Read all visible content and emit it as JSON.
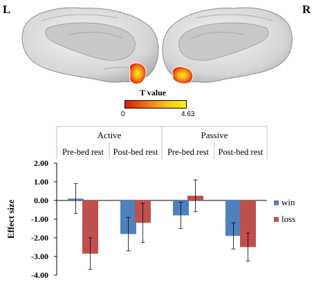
{
  "figure": {
    "hemisphere_left": "L",
    "hemisphere_right": "R",
    "colorbar": {
      "title": "T value",
      "min_label": "0",
      "max_label": "4.63",
      "colors": [
        "#e01a0e",
        "#f06d13",
        "#f9c21a",
        "#fff20f"
      ]
    }
  },
  "chart_data": {
    "type": "bar",
    "groups": [
      {
        "label": "Active",
        "categories": [
          "Pre-bed rest",
          "Post-bed rest"
        ]
      },
      {
        "label": "Passive",
        "categories": [
          "Pre-bed rest",
          "Post-bed rest"
        ]
      }
    ],
    "categories": [
      "Pre-bed rest",
      "Post-bed rest",
      "Pre-bed rest",
      "Post-bed rest"
    ],
    "series": [
      {
        "name": "win",
        "color": "#4f81bd",
        "values": [
          0.1,
          -1.8,
          -0.8,
          -1.9
        ],
        "errors": [
          0.8,
          0.9,
          0.7,
          0.7
        ]
      },
      {
        "name": "loss",
        "color": "#c0504d",
        "values": [
          -2.85,
          -1.2,
          0.25,
          -2.5
        ],
        "errors": [
          0.85,
          1.05,
          0.85,
          0.75
        ]
      }
    ],
    "ylabel": "Effect size",
    "xlabel": "",
    "ylim": [
      -4.0,
      2.0
    ],
    "yticks": [
      2.0,
      1.0,
      0.0,
      -1.0,
      -2.0,
      -3.0,
      -4.0
    ],
    "ytick_labels": [
      "2.00",
      "1.00",
      "0.00",
      "-1.00",
      "-2.00",
      "-3.00",
      "-4.00"
    ],
    "legend_position": "right",
    "grid": false
  }
}
